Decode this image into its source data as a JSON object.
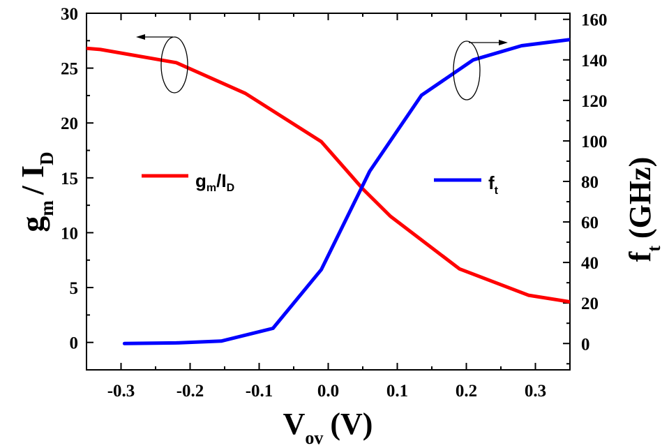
{
  "chart_data": {
    "type": "line",
    "x_axis": {
      "label_main": "V",
      "label_sub": "ov",
      "label_unit": "(V)",
      "range": [
        -0.35,
        0.35
      ],
      "ticks": [
        -0.3,
        -0.2,
        -0.1,
        0.0,
        0.1,
        0.2,
        0.3
      ],
      "tick_labels": [
        "-0.3",
        "-0.2",
        "-0.1",
        "0.0",
        "0.1",
        "0.2",
        "0.3"
      ]
    },
    "y_left": {
      "label_main_1": "g",
      "label_sub_1": "m",
      "label_mid": "/ I",
      "label_sub_2": "D",
      "range": [
        -2.5,
        30
      ],
      "ticks": [
        0,
        5,
        10,
        15,
        20,
        25,
        30
      ],
      "tick_labels": [
        "0",
        "5",
        "10",
        "15",
        "20",
        "25",
        "30"
      ]
    },
    "y_right": {
      "label_main": "f",
      "label_sub": "t",
      "label_unit": "(GHz)",
      "range": [
        -13,
        163
      ],
      "ticks": [
        0,
        20,
        40,
        60,
        80,
        100,
        120,
        140,
        160
      ],
      "tick_labels": [
        "0",
        "20",
        "40",
        "60",
        "80",
        "100",
        "120",
        "140",
        "160"
      ]
    },
    "series": [
      {
        "name": "gm/ID",
        "legend_main": "g",
        "legend_sub1": "m",
        "legend_mid": "/I",
        "legend_sub2": "D",
        "axis": "left",
        "color": "#ff0000",
        "x": [
          -0.35,
          -0.33,
          -0.22,
          -0.12,
          -0.01,
          0.05,
          0.09,
          0.19,
          0.29,
          0.35
        ],
        "y": [
          26.8,
          26.7,
          25.5,
          22.7,
          18.3,
          14.0,
          11.5,
          6.7,
          4.3,
          3.7
        ]
      },
      {
        "name": "ft",
        "legend_main": "f",
        "legend_sub1": "t",
        "axis": "right",
        "color": "#0000ff",
        "x": [
          -0.295,
          -0.22,
          -0.155,
          -0.08,
          -0.01,
          0.06,
          0.135,
          0.21,
          0.28,
          0.35
        ],
        "y": [
          0,
          0.3,
          1.2,
          7.5,
          36.5,
          85.0,
          122.5,
          140.0,
          147.0,
          150.0
        ]
      }
    ],
    "grid": false,
    "legend_placement": "inside-middle"
  }
}
